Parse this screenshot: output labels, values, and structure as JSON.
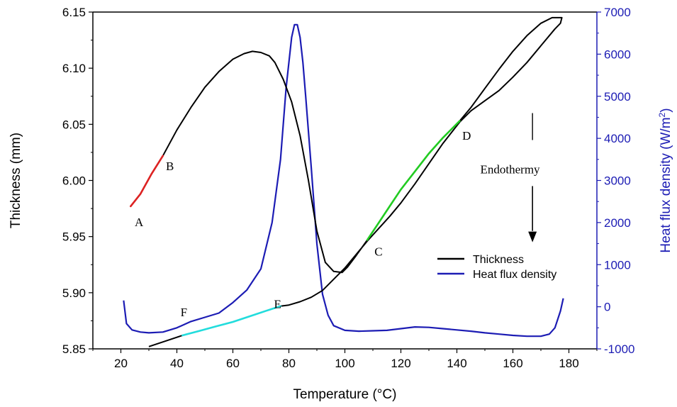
{
  "chart_data": {
    "type": "line",
    "xlabel": "Temperature (°C)",
    "ylabel": "Thickness (mm)",
    "y2label_main": "Heat flux density (W/m",
    "y2label_sup": "2",
    "y2label_close": ")",
    "xlim": [
      10,
      190
    ],
    "ylim": [
      5.85,
      6.15
    ],
    "y2lim": [
      -1000,
      7000
    ],
    "x_ticks": [
      "20",
      "40",
      "60",
      "80",
      "100",
      "120",
      "140",
      "160",
      "180"
    ],
    "y_ticks": [
      "5.85",
      "5.90",
      "5.95",
      "6.00",
      "6.05",
      "6.10",
      "6.15"
    ],
    "y2_ticks": [
      "-1000",
      "0",
      "1000",
      "2000",
      "3000",
      "4000",
      "5000",
      "6000",
      "7000"
    ],
    "colors": {
      "thickness": "#000000",
      "heat_flux": "#1c1cb4",
      "segment_ab": "#dd2222",
      "segment_cd": "#22cc22",
      "segment_ef": "#22dddd",
      "right_axis": "#1c1cb4"
    },
    "series": [
      {
        "name": "Thickness",
        "axis": "left",
        "x": [
          23.5,
          27,
          31,
          35,
          40,
          45,
          50,
          55,
          60,
          64,
          67,
          70,
          73,
          75,
          78,
          81,
          84,
          87,
          90,
          93,
          96,
          99,
          101,
          104,
          108,
          112,
          116,
          120,
          125,
          130,
          135,
          141,
          145,
          150,
          155,
          160,
          165,
          170,
          174,
          177.5,
          177,
          175,
          170,
          165,
          160,
          155,
          150,
          145,
          141,
          135,
          130,
          125,
          120,
          116,
          112,
          108,
          104,
          100,
          96,
          92,
          88,
          84,
          80,
          77,
          72,
          66,
          60,
          54,
          48,
          42,
          36,
          30
        ],
        "y": [
          5.977,
          5.988,
          6.006,
          6.022,
          6.045,
          6.065,
          6.083,
          6.097,
          6.108,
          6.113,
          6.115,
          6.114,
          6.111,
          6.105,
          6.09,
          6.07,
          6.04,
          6.0,
          5.955,
          5.927,
          5.919,
          5.918,
          5.923,
          5.933,
          5.947,
          5.962,
          5.977,
          5.992,
          6.008,
          6.024,
          6.038,
          6.053,
          6.065,
          6.082,
          6.099,
          6.115,
          6.129,
          6.14,
          6.145,
          6.145,
          6.14,
          6.135,
          6.12,
          6.105,
          6.092,
          6.08,
          6.071,
          6.062,
          6.052,
          6.033,
          6.015,
          5.997,
          5.98,
          5.968,
          5.957,
          5.946,
          5.934,
          5.922,
          5.912,
          5.902,
          5.896,
          5.892,
          5.889,
          5.888,
          5.884,
          5.879,
          5.874,
          5.87,
          5.866,
          5.862,
          5.857,
          5.852
        ]
      },
      {
        "name": "Heat flux density",
        "axis": "right",
        "x": [
          21,
          22,
          24,
          27,
          30,
          35,
          40,
          45,
          50,
          55,
          60,
          65,
          70,
          74,
          77,
          79,
          81,
          82,
          83,
          84,
          85,
          86,
          88,
          90,
          92,
          94,
          96,
          100,
          105,
          110,
          115,
          120,
          125,
          130,
          135,
          140,
          145,
          150,
          155,
          160,
          165,
          170,
          173,
          175,
          177,
          178
        ],
        "y": [
          150,
          -400,
          -550,
          -600,
          -620,
          -600,
          -500,
          -350,
          -250,
          -150,
          100,
          400,
          900,
          2000,
          3500,
          5200,
          6400,
          6700,
          6700,
          6400,
          5800,
          5000,
          3300,
          1500,
          300,
          -200,
          -450,
          -560,
          -580,
          -570,
          -560,
          -520,
          -480,
          -490,
          -520,
          -550,
          -580,
          -620,
          -650,
          -680,
          -700,
          -700,
          -650,
          -500,
          -100,
          200
        ]
      }
    ],
    "highlights": [
      {
        "from": "A",
        "to": "B",
        "x": [
          23.5,
          27,
          31,
          35
        ],
        "y": [
          5.977,
          5.988,
          6.006,
          6.022
        ]
      },
      {
        "from": "C",
        "to": "D",
        "x": [
          108,
          112,
          116,
          120,
          125,
          130,
          135,
          141
        ],
        "y": [
          5.947,
          5.962,
          5.977,
          5.992,
          6.008,
          6.024,
          6.038,
          6.053
        ]
      },
      {
        "from": "E",
        "to": "F",
        "x": [
          42,
          48,
          54,
          60,
          66,
          72,
          77
        ],
        "y": [
          5.862,
          5.866,
          5.87,
          5.874,
          5.879,
          5.884,
          5.888
        ]
      }
    ],
    "point_labels": [
      {
        "text": "A",
        "x": 26.5,
        "y": 5.963
      },
      {
        "text": "B",
        "x": 37.5,
        "y": 6.013
      },
      {
        "text": "C",
        "x": 112,
        "y": 5.937
      },
      {
        "text": "D",
        "x": 143.5,
        "y": 6.04
      },
      {
        "text": "E",
        "x": 76,
        "y": 5.89
      },
      {
        "text": "F",
        "x": 42.5,
        "y": 5.883
      }
    ],
    "annotation": {
      "text": "Endothermy",
      "x": 159,
      "y": 6.01,
      "arrow_x": 167
    },
    "legend": {
      "placement": "bottom-right",
      "entries": [
        "Thickness",
        "Heat flux density"
      ]
    }
  }
}
